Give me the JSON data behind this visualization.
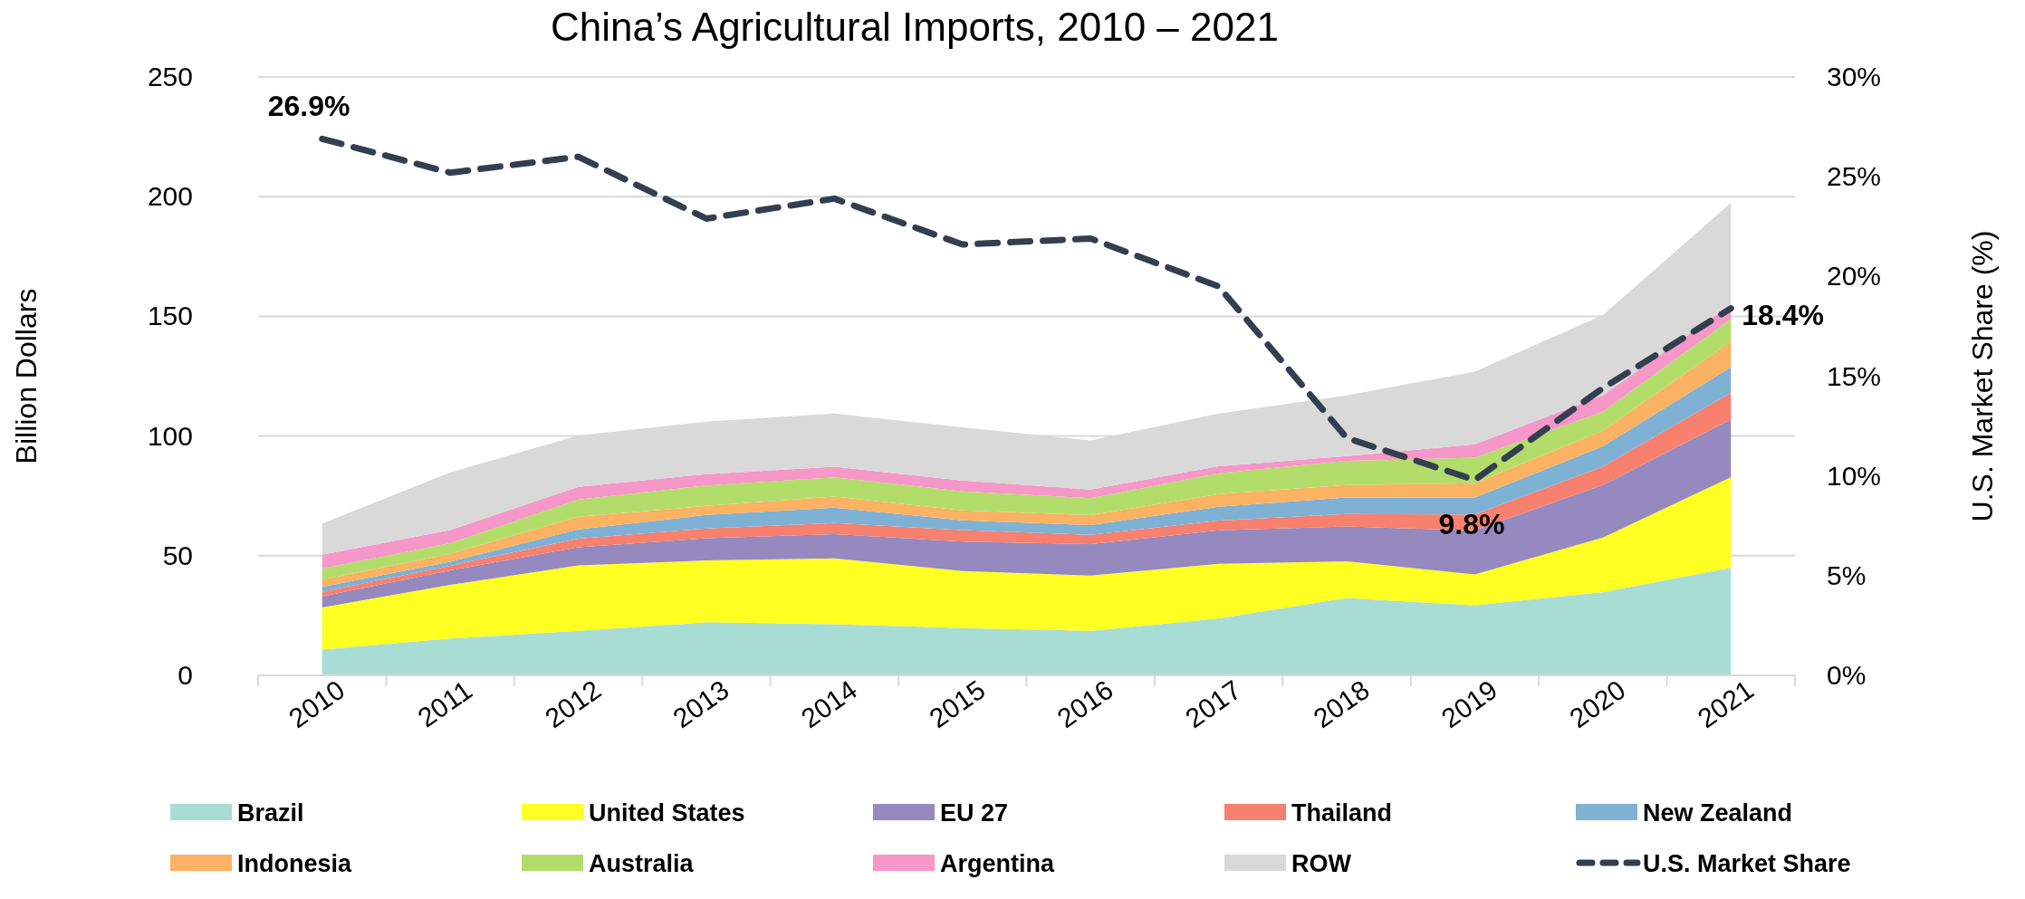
{
  "chart_data": {
    "type": "area",
    "title": "China’s Agricultural Imports, 2010 – 2021",
    "ylabel": "Billion Dollars",
    "y2label": "U.S. Market Share (%)",
    "categories": [
      "2010",
      "2011",
      "2012",
      "2013",
      "2014",
      "2015",
      "2016",
      "2017",
      "2018",
      "2019",
      "2020",
      "2021"
    ],
    "stacked": true,
    "series": [
      {
        "name": "Brazil",
        "color": "#a8ddd5",
        "values": [
          10.8,
          15.4,
          18.6,
          22.2,
          21.4,
          19.8,
          18.6,
          23.8,
          32.3,
          29.3,
          34.8,
          45
        ]
      },
      {
        "name": "United States",
        "color": "#ffff22",
        "values": [
          17.6,
          22.4,
          27.4,
          25.8,
          27.5,
          23.8,
          23.1,
          22.8,
          15.4,
          12.9,
          22.8,
          37.8
        ]
      },
      {
        "name": "EU 27",
        "color": "#9589c0",
        "values": [
          4.6,
          6.1,
          7.5,
          9.3,
          10.1,
          12.3,
          13.1,
          14,
          14.5,
          18.4,
          21.9,
          24.1
        ]
      },
      {
        "name": "Thailand",
        "color": "#f7806f",
        "values": [
          2,
          1.9,
          3.6,
          4.1,
          4.6,
          4.8,
          3.9,
          4.1,
          5.2,
          6.6,
          7.7,
          11.2
        ]
      },
      {
        "name": "New Zealand",
        "color": "#7eb1d4",
        "values": [
          2,
          1.7,
          3.9,
          5.6,
          6.5,
          4.1,
          4.1,
          5.7,
          6.9,
          7.1,
          8.5,
          10.7
        ]
      },
      {
        "name": "Indonesia",
        "color": "#fbb262",
        "values": [
          3,
          3.3,
          5.3,
          3.8,
          4.6,
          4.1,
          4.1,
          5.3,
          5.2,
          6,
          6.5,
          10.7
        ]
      },
      {
        "name": "Australia",
        "color": "#b3dd6a",
        "values": [
          4.6,
          4.4,
          7.2,
          8.5,
          8,
          8,
          7.1,
          8.7,
          10.1,
          10.7,
          8,
          9.3
        ]
      },
      {
        "name": "Argentina",
        "color": "#f597c8",
        "values": [
          5.8,
          5.5,
          5.3,
          4.8,
          4.5,
          4.5,
          3.6,
          3,
          2,
          5.5,
          6.8,
          6.1
        ]
      },
      {
        "name": "ROW",
        "color": "#d9d9d9",
        "values": [
          13,
          24.1,
          21.4,
          21.9,
          22.2,
          22.2,
          20.5,
          22,
          25.4,
          30.4,
          33.5,
          42.5
        ]
      },
      {
        "name": "U.S. Market Share",
        "type": "line",
        "axis": "y2",
        "color": "#333f50",
        "line_style": "dashed",
        "marker": "none",
        "values": [
          26.9,
          25.2,
          26.0,
          22.9,
          23.9,
          21.6,
          21.9,
          19.5,
          11.9,
          9.8,
          14.4,
          18.4
        ],
        "value_labels": [
          "26.9%",
          null,
          null,
          null,
          null,
          null,
          null,
          null,
          null,
          "9.8%",
          null,
          "18.4%"
        ]
      }
    ],
    "ylim": [
      0,
      250
    ],
    "yticks": [
      0,
      50,
      100,
      150,
      200,
      250
    ],
    "y2lim": [
      0,
      30
    ],
    "y2ticks": [
      {
        "value": 0,
        "label": "0%"
      },
      {
        "value": 5,
        "label": "5%"
      },
      {
        "value": 10,
        "label": "10%"
      },
      {
        "value": 15,
        "label": "15%"
      },
      {
        "value": 20,
        "label": "20%"
      },
      {
        "value": 25,
        "label": "25%"
      },
      {
        "value": 30,
        "label": "30%"
      }
    ],
    "grid": "y",
    "legend": "bottom"
  }
}
